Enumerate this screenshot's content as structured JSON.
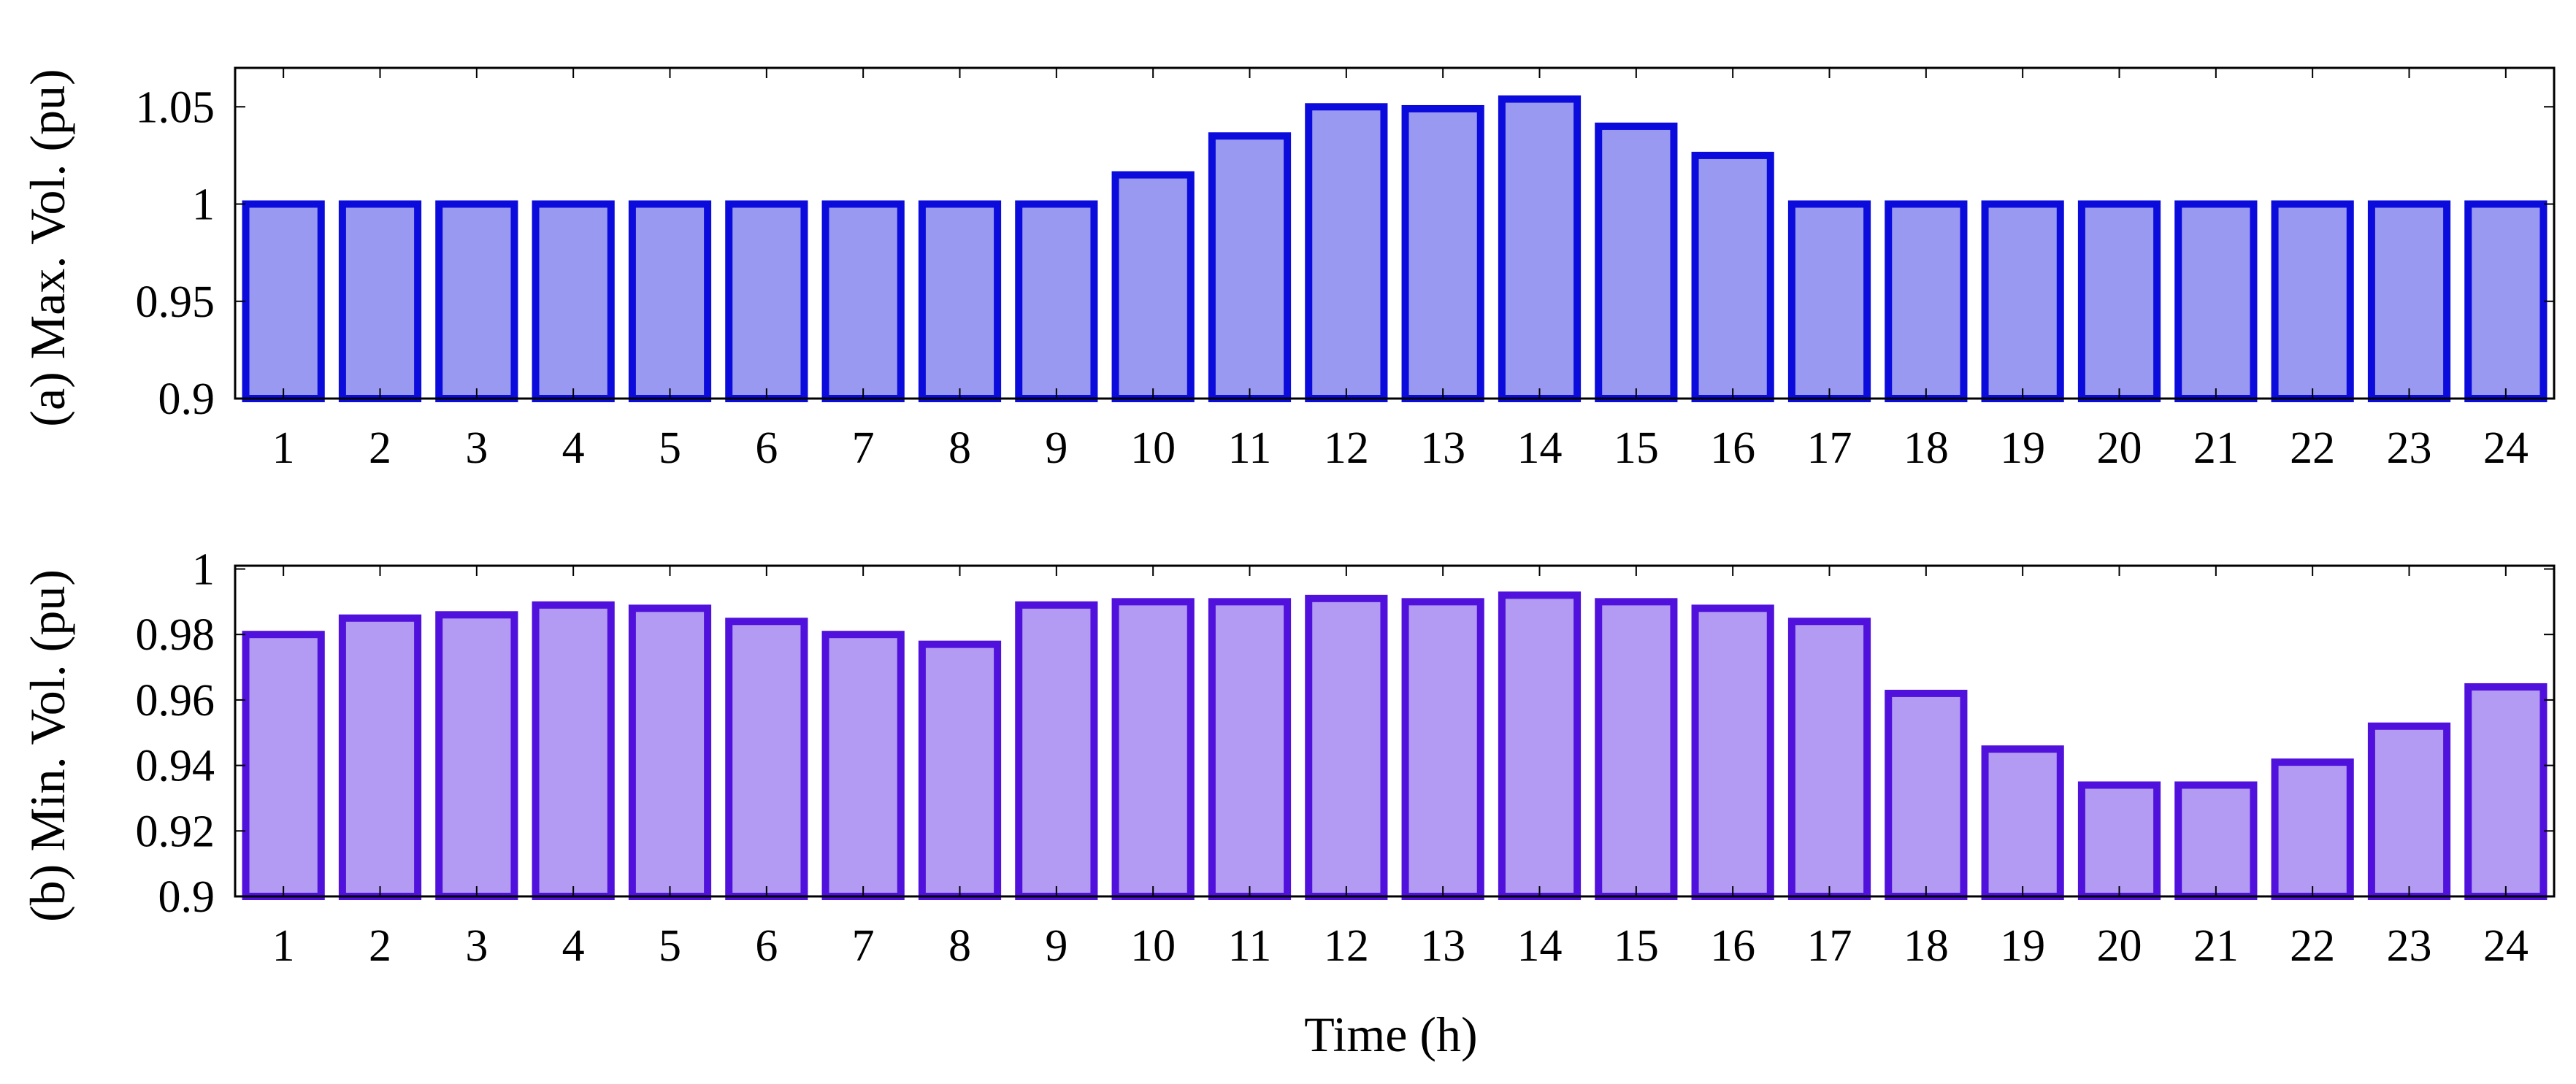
{
  "chart_data": [
    {
      "type": "bar",
      "ylabel": "(a) Max. Vol. (pu)",
      "xlabel": "",
      "categories": [
        "1",
        "2",
        "3",
        "4",
        "5",
        "6",
        "7",
        "8",
        "9",
        "10",
        "11",
        "12",
        "13",
        "14",
        "15",
        "16",
        "17",
        "18",
        "19",
        "20",
        "21",
        "22",
        "23",
        "24"
      ],
      "values": [
        1,
        1,
        1,
        1,
        1,
        1,
        1,
        1,
        1,
        1.015,
        1.035,
        1.05,
        1.049,
        1.054,
        1.04,
        1.025,
        1,
        1,
        1,
        1,
        1,
        1,
        1,
        1
      ],
      "ylim": [
        0.9,
        1.07
      ],
      "yticks": [
        0.9,
        0.95,
        1,
        1.05
      ],
      "ytick_labels": [
        "0.9",
        "0.95",
        "1",
        "1.05"
      ],
      "colors": {
        "fill": "#9999f2",
        "stroke": "#0b0bdc"
      },
      "grid": false
    },
    {
      "type": "bar",
      "ylabel": "(b) Min. Vol. (pu)",
      "xlabel": "Time (h)",
      "categories": [
        "1",
        "2",
        "3",
        "4",
        "5",
        "6",
        "7",
        "8",
        "9",
        "10",
        "11",
        "12",
        "13",
        "14",
        "15",
        "16",
        "17",
        "18",
        "19",
        "20",
        "21",
        "22",
        "23",
        "24"
      ],
      "values": [
        0.98,
        0.985,
        0.986,
        0.989,
        0.988,
        0.984,
        0.98,
        0.977,
        0.989,
        0.99,
        0.99,
        0.991,
        0.99,
        0.992,
        0.99,
        0.988,
        0.984,
        0.962,
        0.945,
        0.934,
        0.934,
        0.941,
        0.952,
        0.964
      ],
      "ylim": [
        0.9,
        1.001
      ],
      "yticks": [
        0.9,
        0.92,
        0.94,
        0.96,
        0.98,
        1
      ],
      "ytick_labels": [
        "0.9",
        "0.92",
        "0.94",
        "0.96",
        "0.98",
        "1"
      ],
      "colors": {
        "fill": "#b39af2",
        "stroke": "#5011dc"
      },
      "grid": false
    }
  ]
}
